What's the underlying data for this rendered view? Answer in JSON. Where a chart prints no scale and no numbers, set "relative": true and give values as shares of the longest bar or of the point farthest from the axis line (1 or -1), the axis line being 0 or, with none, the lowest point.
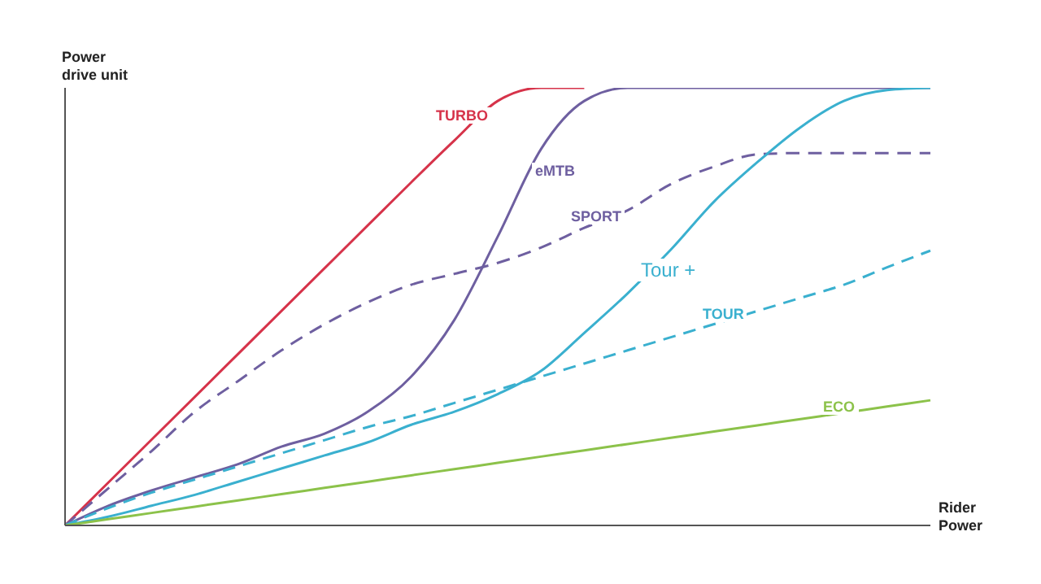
{
  "chart_data": {
    "type": "line",
    "relative": true,
    "ylabel": "Power\ndrive unit",
    "xlabel": "Rider\nPower",
    "grid": false,
    "legend": false,
    "marker": "none",
    "categories": [
      null,
      null,
      null,
      null,
      null,
      null,
      null,
      null,
      null,
      null,
      null,
      null,
      null,
      null,
      null,
      null,
      null,
      null,
      null,
      null,
      null
    ],
    "series": [
      {
        "name": "TURBO",
        "color": "#d6334a",
        "line_style": "solid",
        "values": [
          0,
          0.098,
          0.196,
          0.294,
          0.392,
          0.49,
          0.588,
          0.686,
          0.784,
          0.88,
          0.97,
          1,
          1,
          null,
          null,
          null,
          null,
          null,
          null,
          null,
          null
        ]
      },
      {
        "name": "eMTB",
        "color": "#6e5fa0",
        "line_style": "solid",
        "values": [
          0,
          0.045,
          0.08,
          0.11,
          0.14,
          0.18,
          0.21,
          0.26,
          0.34,
          0.47,
          0.66,
          0.86,
          0.97,
          1,
          1,
          1,
          1,
          1,
          1,
          1,
          1
        ]
      },
      {
        "name": "SPORT",
        "color": "#6e5fa0",
        "line_style": "dashed",
        "values": [
          0,
          0.085,
          0.17,
          0.26,
          0.33,
          0.4,
          0.46,
          0.51,
          0.55,
          0.575,
          0.6,
          0.635,
          0.68,
          0.72,
          0.78,
          0.82,
          0.848,
          0.851,
          0.851,
          0.851,
          0.851
        ]
      },
      {
        "name": "Tour +",
        "color": "#3ab0cf",
        "line_style": "solid",
        "values": [
          0,
          0.02,
          0.045,
          0.07,
          0.1,
          0.13,
          0.16,
          0.19,
          0.23,
          0.26,
          0.3,
          0.353,
          0.44,
          0.53,
          0.63,
          0.74,
          0.83,
          0.91,
          0.97,
          0.995,
          1
        ]
      },
      {
        "name": "TOUR",
        "color": "#3ab0cf",
        "line_style": "dashed",
        "values": [
          0,
          0.04,
          0.075,
          0.105,
          0.135,
          0.165,
          0.195,
          0.225,
          0.25,
          0.28,
          0.31,
          0.34,
          0.37,
          0.4,
          0.43,
          0.46,
          0.49,
          0.52,
          0.55,
          0.59,
          0.628
        ]
      },
      {
        "name": "ECO",
        "color": "#8cc24a",
        "line_style": "solid",
        "values": [
          0,
          0.0143,
          0.0286,
          0.0429,
          0.0572,
          0.0715,
          0.0858,
          0.1001,
          0.1144,
          0.1287,
          0.143,
          0.1573,
          0.1716,
          0.1859,
          0.2002,
          0.2145,
          0.2288,
          0.2431,
          0.2574,
          0.2717,
          0.286
        ]
      }
    ]
  }
}
